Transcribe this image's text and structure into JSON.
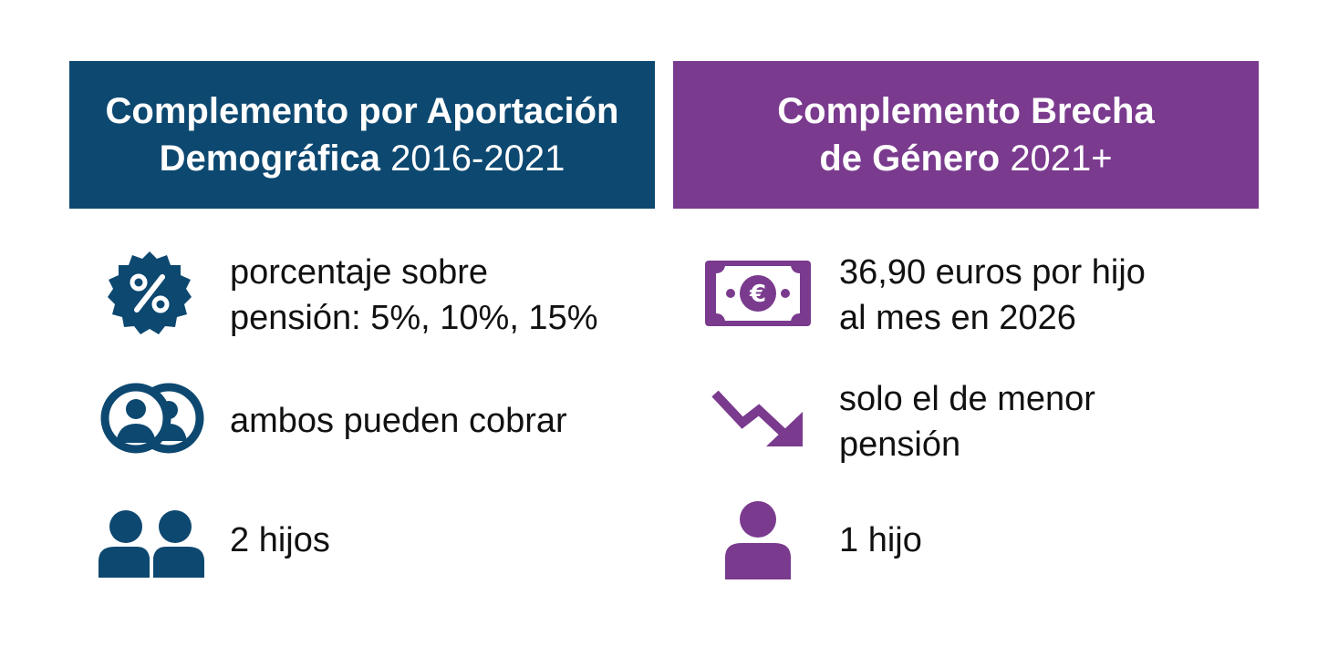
{
  "left_panel": {
    "title_bold_line1": "Complemento por Aportación",
    "title_bold_line2": "Demográfica",
    "title_light": "2016-2021",
    "color": "#0d4870",
    "items": [
      {
        "icon": "percent-badge-icon",
        "line1": "porcentaje sobre",
        "line2": "pensión: 5%, 10%, 15%"
      },
      {
        "icon": "two-users-circle-icon",
        "line1": "ambos pueden cobrar"
      },
      {
        "icon": "two-people-icon",
        "line1": "2 hijos"
      }
    ]
  },
  "right_panel": {
    "title_bold_line1": "Complemento Brecha",
    "title_bold_line2": "de Género",
    "title_light": "2021+",
    "color": "#7a3a8e",
    "items": [
      {
        "icon": "euro-banknote-icon",
        "line1": "36,90 euros por hijo",
        "line2": "al mes en 2026"
      },
      {
        "icon": "trending-down-arrow-icon",
        "line1": "solo el de menor",
        "line2": "pensión"
      },
      {
        "icon": "single-person-icon",
        "line1": "1 hijo"
      }
    ]
  }
}
